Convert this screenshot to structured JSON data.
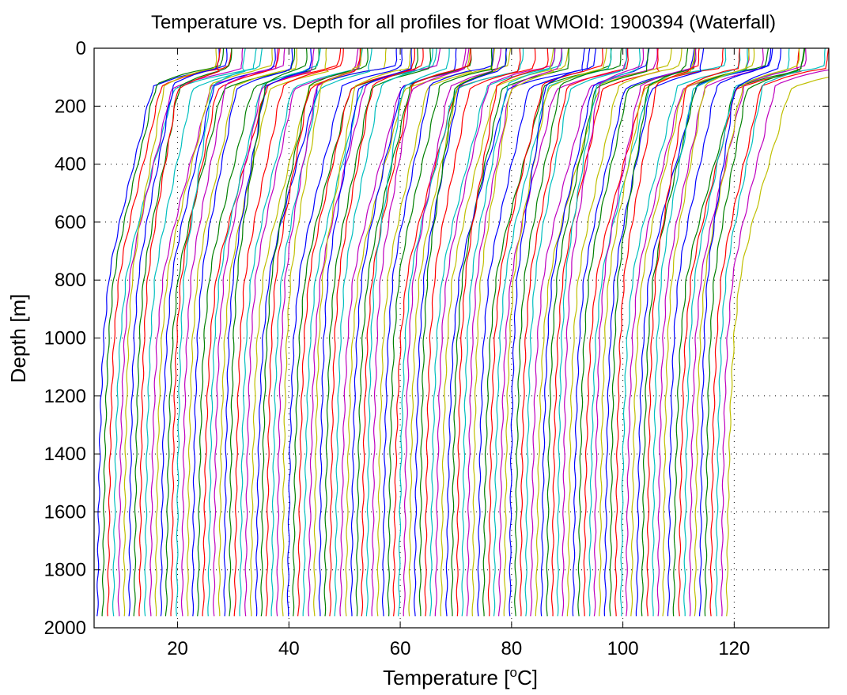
{
  "chart_data": {
    "type": "line",
    "title": "Temperature vs. Depth for all profiles for float WMOId: 1900394 (Waterfall)",
    "xlabel": {
      "text": "Temperature [",
      "sup": "o",
      "after": "C]"
    },
    "ylabel": "Depth [m]",
    "xlim": [
      5,
      137
    ],
    "ylim": [
      0,
      2000
    ],
    "y_reversed": true,
    "x_ticks": [
      20,
      40,
      60,
      80,
      100,
      120
    ],
    "y_ticks": [
      0,
      200,
      400,
      600,
      800,
      1000,
      1200,
      1400,
      1600,
      1800,
      2000
    ],
    "grid": "dotted",
    "legend": "none",
    "waterfall": {
      "profile_count": 120,
      "first_bottom_temperature": 5.6,
      "bottom_temperature_step": 0.95,
      "max_depth": 1960,
      "color_cycle": [
        "#0000ff",
        "#008000",
        "#ff0000",
        "#00bfbf",
        "#bf00bf",
        "#bfbf00"
      ]
    },
    "mean_profile": {
      "depth": [
        0,
        40,
        70,
        100,
        130,
        200,
        300,
        400,
        500,
        600,
        700,
        800,
        1000,
        1200,
        1400,
        1600,
        1800,
        1960
      ],
      "temperature_offset": [
        19.5,
        19.4,
        19.0,
        13.0,
        9.0,
        8.0,
        7.0,
        5.8,
        4.7,
        3.6,
        2.6,
        1.8,
        1.0,
        0.6,
        0.35,
        0.2,
        0.08,
        0.0
      ]
    }
  }
}
